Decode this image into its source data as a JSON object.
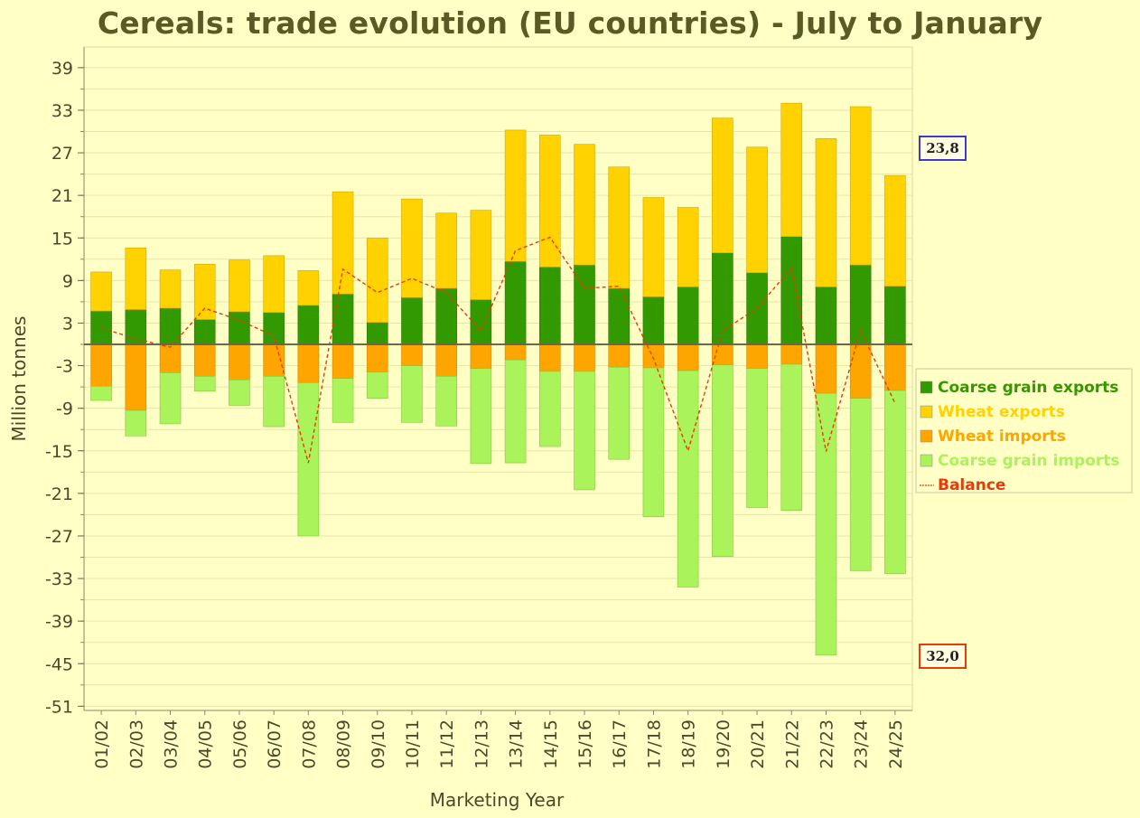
{
  "title": "Cereals: trade evolution (EU countries) - July to January",
  "chart_data": {
    "type": "bar",
    "title": "Cereals: trade evolution (EU countries) - July to January",
    "xlabel": "Marketing Year",
    "ylabel": "Million tonnes",
    "ylim": [
      -51,
      42
    ],
    "yticks": [
      "39",
      "33",
      "27",
      "21",
      "15",
      "9",
      "3",
      "-3",
      "-9",
      "-15",
      "-21",
      "-27",
      "-33",
      "-39",
      "-45",
      "-51"
    ],
    "ytick_values": [
      39,
      33,
      27,
      21,
      15,
      9,
      3,
      -3,
      -9,
      -15,
      -21,
      -27,
      -33,
      -39,
      -45,
      -51
    ],
    "grid": true,
    "legend_position": "right",
    "categories": [
      "01/02",
      "02/03",
      "03/04",
      "04/05",
      "05/06",
      "06/07",
      "07/08",
      "08/09",
      "09/10",
      "10/11",
      "11/12",
      "12/13",
      "13/14",
      "14/15",
      "15/16",
      "16/17",
      "17/18",
      "18/19",
      "19/20",
      "20/21",
      "21/22",
      "22/23",
      "23/24",
      "24/25"
    ],
    "series": [
      {
        "name": "Coarse grain exports",
        "color": "#339900",
        "values": [
          4.7,
          4.9,
          5.1,
          3.5,
          4.6,
          4.5,
          5.5,
          7.1,
          3.1,
          6.6,
          7.9,
          6.3,
          11.7,
          10.9,
          11.2,
          7.9,
          6.7,
          8.1,
          12.9,
          10.1,
          15.2,
          8.1,
          11.2,
          8.2
        ]
      },
      {
        "name": "Wheat exports",
        "color": "#ffd200",
        "values": [
          5.5,
          8.7,
          5.4,
          7.8,
          7.3,
          8.0,
          4.9,
          14.4,
          11.9,
          13.9,
          10.6,
          12.6,
          18.5,
          18.6,
          17.0,
          17.1,
          14.0,
          11.2,
          19.0,
          17.7,
          18.8,
          20.9,
          22.3,
          15.6
        ]
      },
      {
        "name": "Wheat imports",
        "color": "#ffa500",
        "values": [
          -5.9,
          -9.3,
          -4.0,
          -4.5,
          -5.0,
          -4.5,
          -5.4,
          -4.8,
          -3.9,
          -3.0,
          -4.5,
          -3.4,
          -2.2,
          -3.8,
          -3.8,
          -3.2,
          -3.3,
          -3.7,
          -2.9,
          -3.4,
          -2.8,
          -6.9,
          -7.6,
          -6.5
        ]
      },
      {
        "name": "Coarse grain imports",
        "color": "#aaf35a",
        "values": [
          -2.0,
          -3.6,
          -7.2,
          -2.1,
          -3.6,
          -7.1,
          -21.6,
          -6.2,
          -3.7,
          -8.0,
          -7.0,
          -13.4,
          -14.5,
          -10.6,
          -16.7,
          -13.0,
          -21.0,
          -30.5,
          -27.0,
          -19.6,
          -20.6,
          -36.9,
          -24.3,
          -25.8
        ]
      },
      {
        "name": "Balance",
        "color": "#e83a0a",
        "type": "line",
        "values": [
          2.3,
          0.8,
          -0.4,
          5.1,
          3.4,
          1.2,
          -16.7,
          10.6,
          7.3,
          9.3,
          7.3,
          1.9,
          13.2,
          15.1,
          7.9,
          8.2,
          -2.0,
          -15.0,
          1.9,
          5.1,
          10.8,
          -15.1,
          2.0,
          -8.3
        ]
      }
    ],
    "callouts": [
      {
        "label": "23,8",
        "color": "#3a3acc"
      },
      {
        "label": "32,0",
        "color": "#e83a0a"
      }
    ]
  }
}
